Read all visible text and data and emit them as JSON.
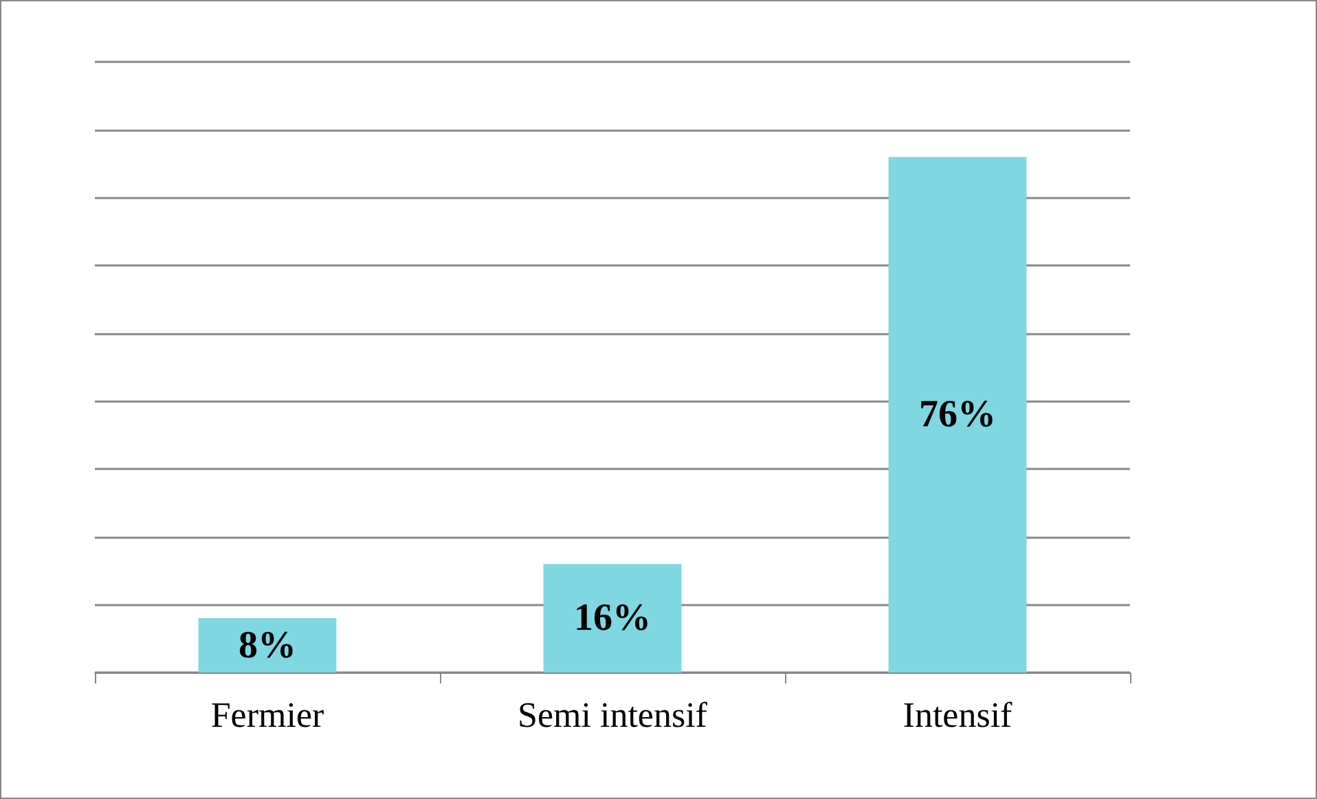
{
  "chart_data": {
    "type": "bar",
    "categories": [
      "Fermier",
      "Semi intensif",
      "Intensif"
    ],
    "values": [
      8,
      16,
      76
    ],
    "value_labels": [
      "8%",
      "16%",
      "76%"
    ],
    "color": "#7fd7e1",
    "ylim": [
      0,
      90
    ],
    "yticks": [
      {
        "value": 0,
        "label": null
      },
      {
        "value": 10,
        "label": null
      },
      {
        "value": 20,
        "label": null
      },
      {
        "value": 30,
        "label": null
      },
      {
        "value": 40,
        "label": null
      },
      {
        "value": 50,
        "label": null
      },
      {
        "value": 60,
        "label": null
      },
      {
        "value": 70,
        "label": null
      },
      {
        "value": 80,
        "label": null
      },
      {
        "value": 90,
        "label": null
      }
    ],
    "grid": true,
    "tick_labels": "x"
  }
}
